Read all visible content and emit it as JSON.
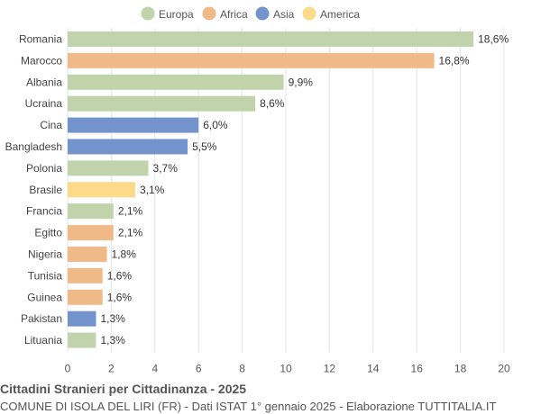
{
  "chart_data": {
    "type": "bar",
    "orientation": "horizontal",
    "title": "Cittadini Stranieri per Cittadinanza - 2025",
    "subtitle": "COMUNE DI ISOLA DEL LIRI (FR) - Dati ISTAT 1° gennaio 2025 - Elaborazione TUTTITALIA.IT",
    "legend": [
      {
        "name": "Europa",
        "color": "#c0d3aa"
      },
      {
        "name": "Africa",
        "color": "#f0ba88"
      },
      {
        "name": "Asia",
        "color": "#7393cc"
      },
      {
        "name": "America",
        "color": "#fdd98a"
      }
    ],
    "legend_placement": "top",
    "categories": [
      "Romania",
      "Marocco",
      "Albania",
      "Ucraina",
      "Cina",
      "Bangladesh",
      "Polonia",
      "Brasile",
      "Francia",
      "Egitto",
      "Nigeria",
      "Tunisia",
      "Guinea",
      "Pakistan",
      "Lituania"
    ],
    "values": [
      18.6,
      16.8,
      9.9,
      8.6,
      6.0,
      5.5,
      3.7,
      3.1,
      2.1,
      2.1,
      1.8,
      1.6,
      1.6,
      1.3,
      1.3
    ],
    "labels": [
      "18,6%",
      "16,8%",
      "9,9%",
      "8,6%",
      "6,0%",
      "5,5%",
      "3,7%",
      "3,1%",
      "2,1%",
      "2,1%",
      "1,8%",
      "1,6%",
      "1,6%",
      "1,3%",
      "1,3%"
    ],
    "groups": [
      "Europa",
      "Africa",
      "Europa",
      "Europa",
      "Asia",
      "Asia",
      "Europa",
      "America",
      "Europa",
      "Africa",
      "Africa",
      "Africa",
      "Africa",
      "Asia",
      "Europa"
    ],
    "xlim": [
      0,
      20
    ],
    "xticks": [
      0,
      2,
      4,
      6,
      8,
      10,
      12,
      14,
      16,
      18,
      20
    ],
    "grid": true
  }
}
